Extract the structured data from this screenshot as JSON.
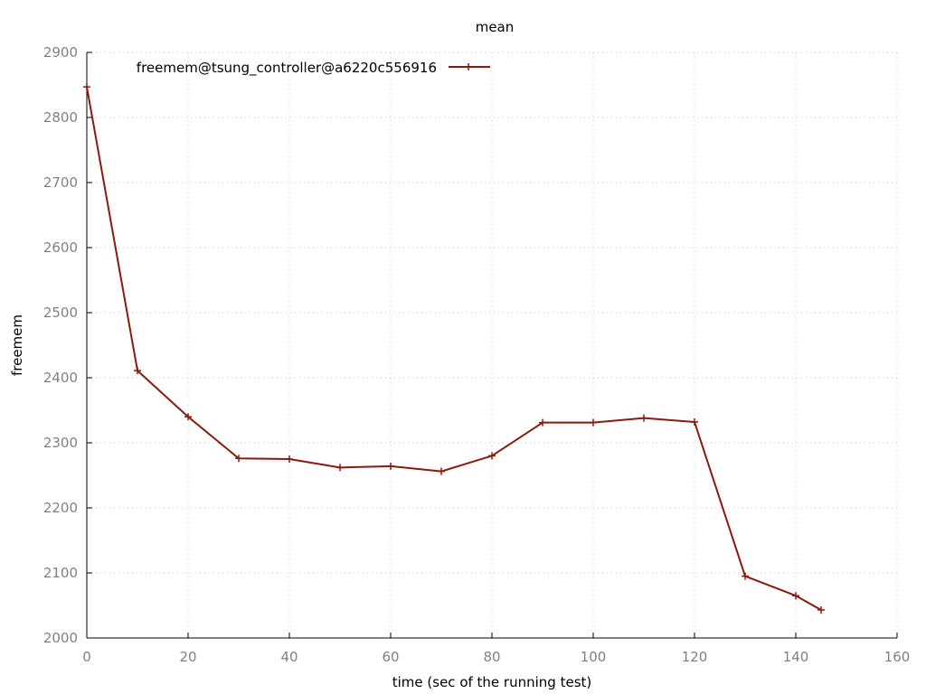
{
  "chart_data": {
    "type": "line",
    "title": "mean",
    "xlabel": "time (sec of the running test)",
    "ylabel": "freemem",
    "xlim": [
      0,
      160
    ],
    "ylim": [
      2000,
      2900
    ],
    "xticks": [
      0,
      20,
      40,
      60,
      80,
      100,
      120,
      140,
      160
    ],
    "yticks": [
      2000,
      2100,
      2200,
      2300,
      2400,
      2500,
      2600,
      2700,
      2800,
      2900
    ],
    "grid": true,
    "legend_position": "top-left",
    "series": [
      {
        "name": "freemem@tsung_controller@a6220c556916",
        "color": "#8b1a0e",
        "x": [
          0,
          10,
          20,
          30,
          40,
          50,
          60,
          70,
          80,
          90,
          100,
          110,
          120,
          130,
          140,
          145
        ],
        "y": [
          2847,
          2411,
          2340,
          2276,
          2275,
          2262,
          2264,
          2256,
          2280,
          2331,
          2331,
          2338,
          2332,
          2095,
          2065,
          2043
        ]
      }
    ]
  }
}
